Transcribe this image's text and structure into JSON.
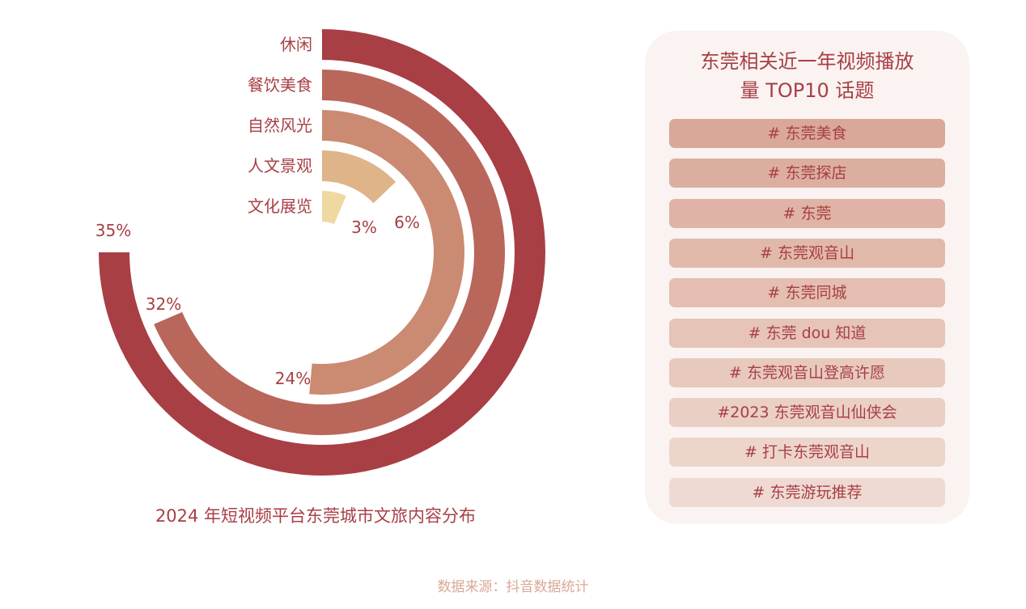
{
  "chart_data": {
    "type": "radial-bar",
    "categories": [
      "休闲",
      "餐饮美食",
      "自然风光",
      "人文景观",
      "文化展览"
    ],
    "values": [
      35,
      32,
      24,
      6,
      3
    ],
    "labels": [
      "35%",
      "32%",
      "24%",
      "6%",
      "3%"
    ],
    "max_value_for_270deg": 35,
    "colors": [
      "#a83f45",
      "#b9665b",
      "#cb8a72",
      "#deb488",
      "#efd9a0"
    ],
    "title": "2024 年短视频平台东莞城市文旅内容分布"
  },
  "panel": {
    "title_line1": "东莞相关近一年视频播放",
    "title_line2": "量 TOP10 话题",
    "topics": [
      "# 东莞美食",
      "# 东莞探店",
      "# 东莞",
      "# 东莞观音山",
      "# 东莞同城",
      "# 东莞 dou 知道",
      "# 东莞观音山登高许愿",
      "#2023 东莞观音山仙侠会",
      "# 打卡东莞观音山",
      "# 东莞游玩推荐"
    ],
    "topic_colors": [
      "#d9a898",
      "#dcae9f",
      "#dfb3a5",
      "#e1b9ab",
      "#e3beb1",
      "#e6c4b8",
      "#e8c9be",
      "#eacfc5",
      "#edd5cc",
      "#efdad3"
    ]
  },
  "source": "数据来源：抖音数据统计"
}
